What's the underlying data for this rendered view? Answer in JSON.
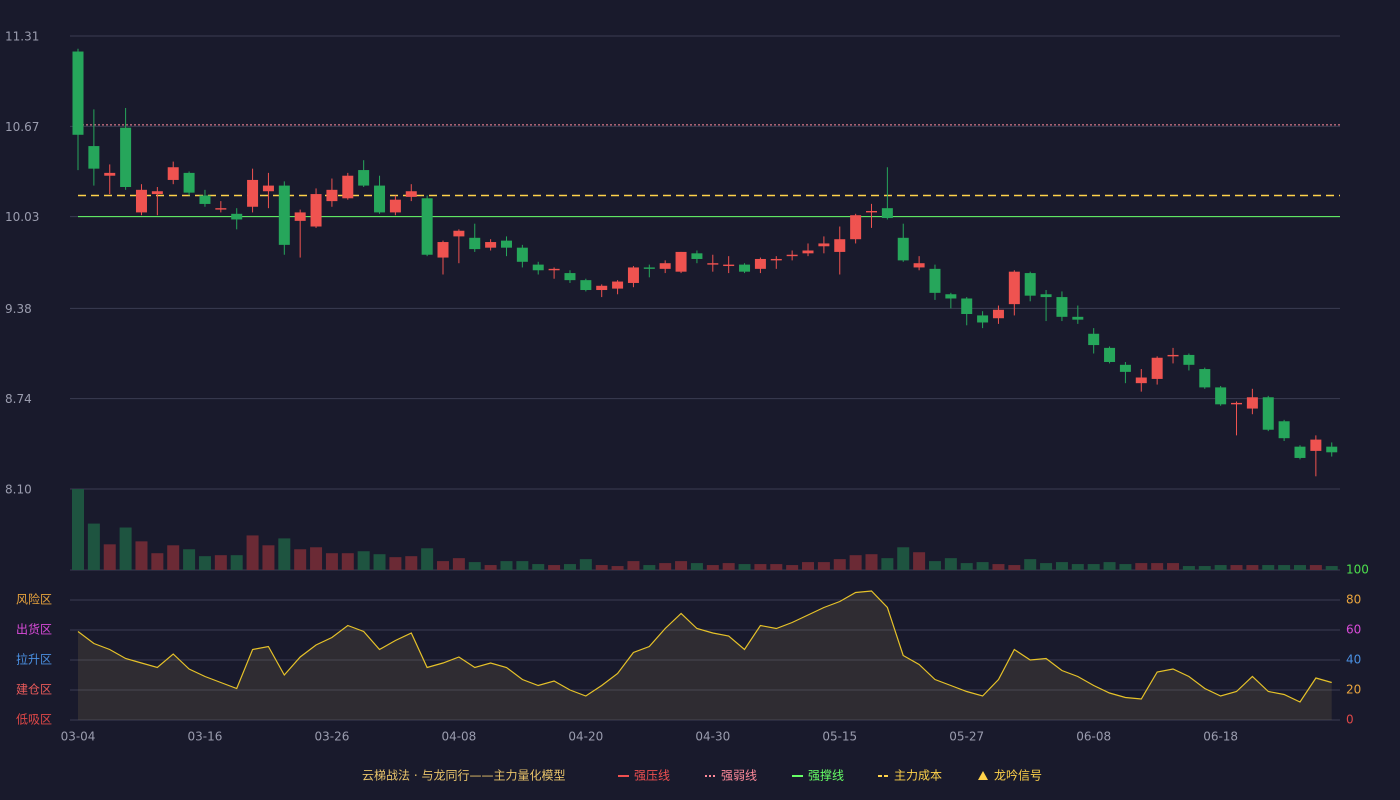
{
  "chart_data": {
    "type": "candlestick",
    "categories": [
      "03-04",
      null,
      null,
      null,
      null,
      null,
      null,
      null,
      "03-16",
      null,
      null,
      null,
      null,
      null,
      null,
      null,
      "03-26",
      null,
      null,
      null,
      null,
      null,
      null,
      null,
      "04-08",
      null,
      null,
      null,
      null,
      null,
      null,
      null,
      "04-20",
      null,
      null,
      null,
      null,
      null,
      null,
      null,
      "04-30",
      null,
      null,
      null,
      null,
      null,
      null,
      null,
      "05-15",
      null,
      null,
      null,
      null,
      null,
      null,
      null,
      "05-27",
      null,
      null,
      null,
      null,
      null,
      null,
      null,
      "06-08",
      null,
      null,
      null,
      null,
      null,
      null,
      null,
      "06-18",
      null,
      null,
      null,
      null,
      null,
      null,
      null
    ],
    "open": [
      11.2,
      10.53,
      10.32,
      10.66,
      10.06,
      10.19,
      10.29,
      10.34,
      10.18,
      10.08,
      10.05,
      10.1,
      10.21,
      10.25,
      10.0,
      9.96,
      10.14,
      10.16,
      10.36,
      10.25,
      10.06,
      10.17,
      10.16,
      9.74,
      9.89,
      9.88,
      9.81,
      9.86,
      9.81,
      9.69,
      9.65,
      9.63,
      9.58,
      9.51,
      9.52,
      9.56,
      9.67,
      9.66,
      9.64,
      9.77,
      9.69,
      9.68,
      9.69,
      9.66,
      9.72,
      9.75,
      9.77,
      9.82,
      9.78,
      9.87,
      10.06,
      10.09,
      9.88,
      9.67,
      9.66,
      9.48,
      9.45,
      9.33,
      9.31,
      9.41,
      9.63,
      9.48,
      9.46,
      9.32,
      9.2,
      9.1,
      8.98,
      8.85,
      8.88,
      9.04,
      9.05,
      8.95,
      8.82,
      8.7,
      8.67,
      8.75,
      8.58,
      8.4,
      8.37,
      8.4
    ],
    "close": [
      10.61,
      10.37,
      10.34,
      10.24,
      10.22,
      10.21,
      10.38,
      10.2,
      10.12,
      10.09,
      10.01,
      10.29,
      10.25,
      9.83,
      10.06,
      10.19,
      10.22,
      10.32,
      10.25,
      10.06,
      10.15,
      10.21,
      9.76,
      9.85,
      9.93,
      9.8,
      9.85,
      9.81,
      9.71,
      9.65,
      9.66,
      9.58,
      9.51,
      9.54,
      9.57,
      9.67,
      9.66,
      9.7,
      9.78,
      9.73,
      9.7,
      9.69,
      9.64,
      9.73,
      9.73,
      9.76,
      9.79,
      9.84,
      9.87,
      10.04,
      10.07,
      10.02,
      9.72,
      9.7,
      9.49,
      9.45,
      9.34,
      9.28,
      9.37,
      9.64,
      9.47,
      9.46,
      9.32,
      9.3,
      9.12,
      9.0,
      8.93,
      8.89,
      9.03,
      9.05,
      8.98,
      8.82,
      8.7,
      8.71,
      8.75,
      8.52,
      8.46,
      8.32,
      8.45,
      8.36
    ],
    "high": [
      11.22,
      10.79,
      10.4,
      10.8,
      10.26,
      10.24,
      10.42,
      10.35,
      10.22,
      10.14,
      10.09,
      10.37,
      10.34,
      10.28,
      10.08,
      10.23,
      10.3,
      10.34,
      10.43,
      10.32,
      10.18,
      10.26,
      10.18,
      9.86,
      9.94,
      9.98,
      9.87,
      9.89,
      9.83,
      9.71,
      9.67,
      9.65,
      9.59,
      9.55,
      9.58,
      9.68,
      9.69,
      9.72,
      9.78,
      9.79,
      9.76,
      9.75,
      9.7,
      9.74,
      9.75,
      9.79,
      9.84,
      9.89,
      9.96,
      10.05,
      10.12,
      10.38,
      9.98,
      9.75,
      9.69,
      9.49,
      9.46,
      9.36,
      9.4,
      9.65,
      9.64,
      9.51,
      9.5,
      9.4,
      9.24,
      9.11,
      9.0,
      8.95,
      9.04,
      9.1,
      9.06,
      8.96,
      8.83,
      8.72,
      8.81,
      8.76,
      8.59,
      8.41,
      8.48,
      8.43
    ],
    "low": [
      10.36,
      10.25,
      10.19,
      10.22,
      10.04,
      10.04,
      10.26,
      10.18,
      10.1,
      10.06,
      9.94,
      10.06,
      10.09,
      9.76,
      9.74,
      9.95,
      10.1,
      10.15,
      10.24,
      10.05,
      10.04,
      10.14,
      9.75,
      9.62,
      9.7,
      9.78,
      9.79,
      9.75,
      9.67,
      9.62,
      9.59,
      9.56,
      9.5,
      9.46,
      9.48,
      9.53,
      9.6,
      9.63,
      9.63,
      9.7,
      9.64,
      9.63,
      9.63,
      9.63,
      9.66,
      9.72,
      9.75,
      9.77,
      9.62,
      9.84,
      9.95,
      10.01,
      9.71,
      9.65,
      9.44,
      9.38,
      9.26,
      9.24,
      9.27,
      9.33,
      9.43,
      9.29,
      9.29,
      9.27,
      9.06,
      8.99,
      8.85,
      8.79,
      8.84,
      8.99,
      8.94,
      8.81,
      8.69,
      8.48,
      8.63,
      8.51,
      8.44,
      8.31,
      8.19,
      8.33
    ],
    "up_color": "#ef5350",
    "down_color": "#26a65b",
    "ylim": [
      8.1,
      11.31
    ],
    "yticks": [
      {
        "value": 8.1,
        "label": "8.10"
      },
      8.74,
      9.38,
      10.03,
      10.67,
      11.31
    ],
    "volume": {
      "values": [
        82,
        47,
        26,
        43,
        29,
        17,
        25,
        21,
        14,
        15,
        15,
        35,
        25,
        32,
        21,
        23,
        17,
        17,
        19,
        16,
        13,
        14,
        22,
        9,
        12,
        8,
        5,
        9,
        9,
        6,
        5,
        6,
        11,
        5,
        4,
        9,
        5,
        7,
        9,
        7,
        5,
        7,
        6,
        6,
        6,
        5,
        8,
        8,
        11,
        15,
        16,
        12,
        23,
        18,
        9,
        12,
        7,
        8,
        6,
        5,
        11,
        7,
        8,
        6,
        6,
        8,
        6,
        7,
        7,
        7,
        4,
        4,
        5,
        5,
        5,
        5,
        5,
        5,
        5,
        4
      ],
      "ylim": [
        0,
        82
      ],
      "up_color": "#6b2a35",
      "down_color": "#1e5440"
    },
    "indicator": {
      "values": [
        59,
        51,
        47,
        41,
        38,
        35,
        44,
        34,
        29,
        25,
        21,
        47,
        49,
        30,
        42,
        50,
        55,
        63,
        59,
        47,
        53,
        58,
        35,
        38,
        42,
        35,
        38,
        35,
        27,
        23,
        26,
        20,
        16,
        23,
        31,
        45,
        49,
        61,
        71,
        61,
        58,
        56,
        47,
        63,
        61,
        65,
        70,
        75,
        79,
        85,
        86,
        75,
        43,
        37,
        27,
        23,
        19,
        16,
        27,
        47,
        40,
        41,
        33,
        29,
        23,
        18,
        15,
        14,
        32,
        34,
        29,
        21,
        16,
        19,
        29,
        19,
        17,
        12,
        28,
        25
      ],
      "color": "#e6c229",
      "ylim": [
        0,
        100
      ],
      "yticks": [
        0,
        20,
        40,
        60,
        80,
        100
      ],
      "tick_colors": [
        "#e04848",
        "#e8a33d",
        "#4a90e2",
        "#d94bd9",
        "#e8a33d",
        "#4cdf4c"
      ],
      "zones": [
        {
          "value": 80,
          "label": "风险区",
          "color": "#e8a33d"
        },
        {
          "value": 60,
          "label": "出货区",
          "color": "#d94bd9"
        },
        {
          "value": 40,
          "label": "拉升区",
          "color": "#4a90e2"
        },
        {
          "value": 20,
          "label": "建仓区",
          "color": "#e85a5a"
        },
        {
          "value": 0,
          "label": "低吸区",
          "color": "#e04848"
        }
      ]
    },
    "legend_title": "云梯战法 · 与龙同行——主力量化模型",
    "legend_title_color": "#e8c36a",
    "lines": [
      {
        "name": "强压线",
        "color": "#f05050",
        "style": "solid"
      },
      {
        "name": "强弱线",
        "color": "#ff8a9a",
        "style": "dotted",
        "value": 10.68
      },
      {
        "name": "强撑线",
        "color": "#66ff66",
        "style": "solid",
        "value": 10.03
      },
      {
        "name": "主力成本",
        "color": "#ffd24a",
        "style": "dashed",
        "value": 10.18
      },
      {
        "name": "龙吟信号",
        "color": "#ffd24a",
        "style": "triangle"
      }
    ]
  }
}
